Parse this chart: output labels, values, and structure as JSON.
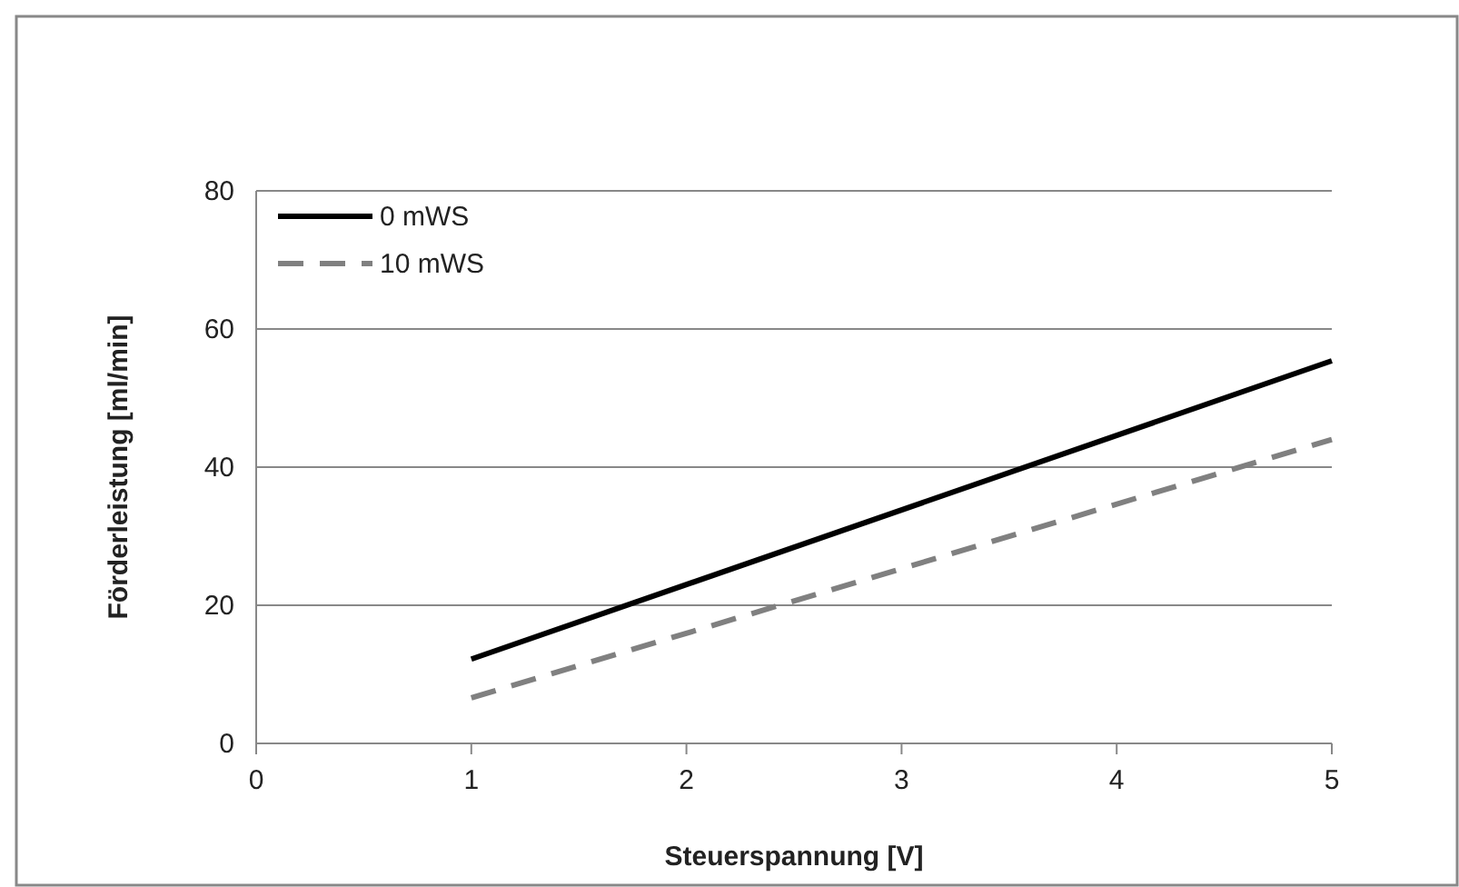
{
  "chart_data": {
    "type": "line",
    "xlabel": "Steuerspannung [V]",
    "ylabel": "Förderleistung [ml/min]",
    "xlim": [
      0,
      5
    ],
    "xticks": [
      0,
      1,
      2,
      3,
      4,
      5
    ],
    "ylim": [
      0,
      80
    ],
    "yticks": [
      0,
      20,
      40,
      60,
      80
    ],
    "x": [
      1,
      5
    ],
    "grid": "y",
    "legend": "top left",
    "marker": "none",
    "series": [
      {
        "name": "0 mWS",
        "color": "#000000",
        "values": [
          12.2,
          55.4
        ],
        "line_style": "solid"
      },
      {
        "name": "10 mWS",
        "color": "#808080",
        "values": [
          6.6,
          44.0
        ],
        "line_style": "dashed"
      }
    ]
  }
}
